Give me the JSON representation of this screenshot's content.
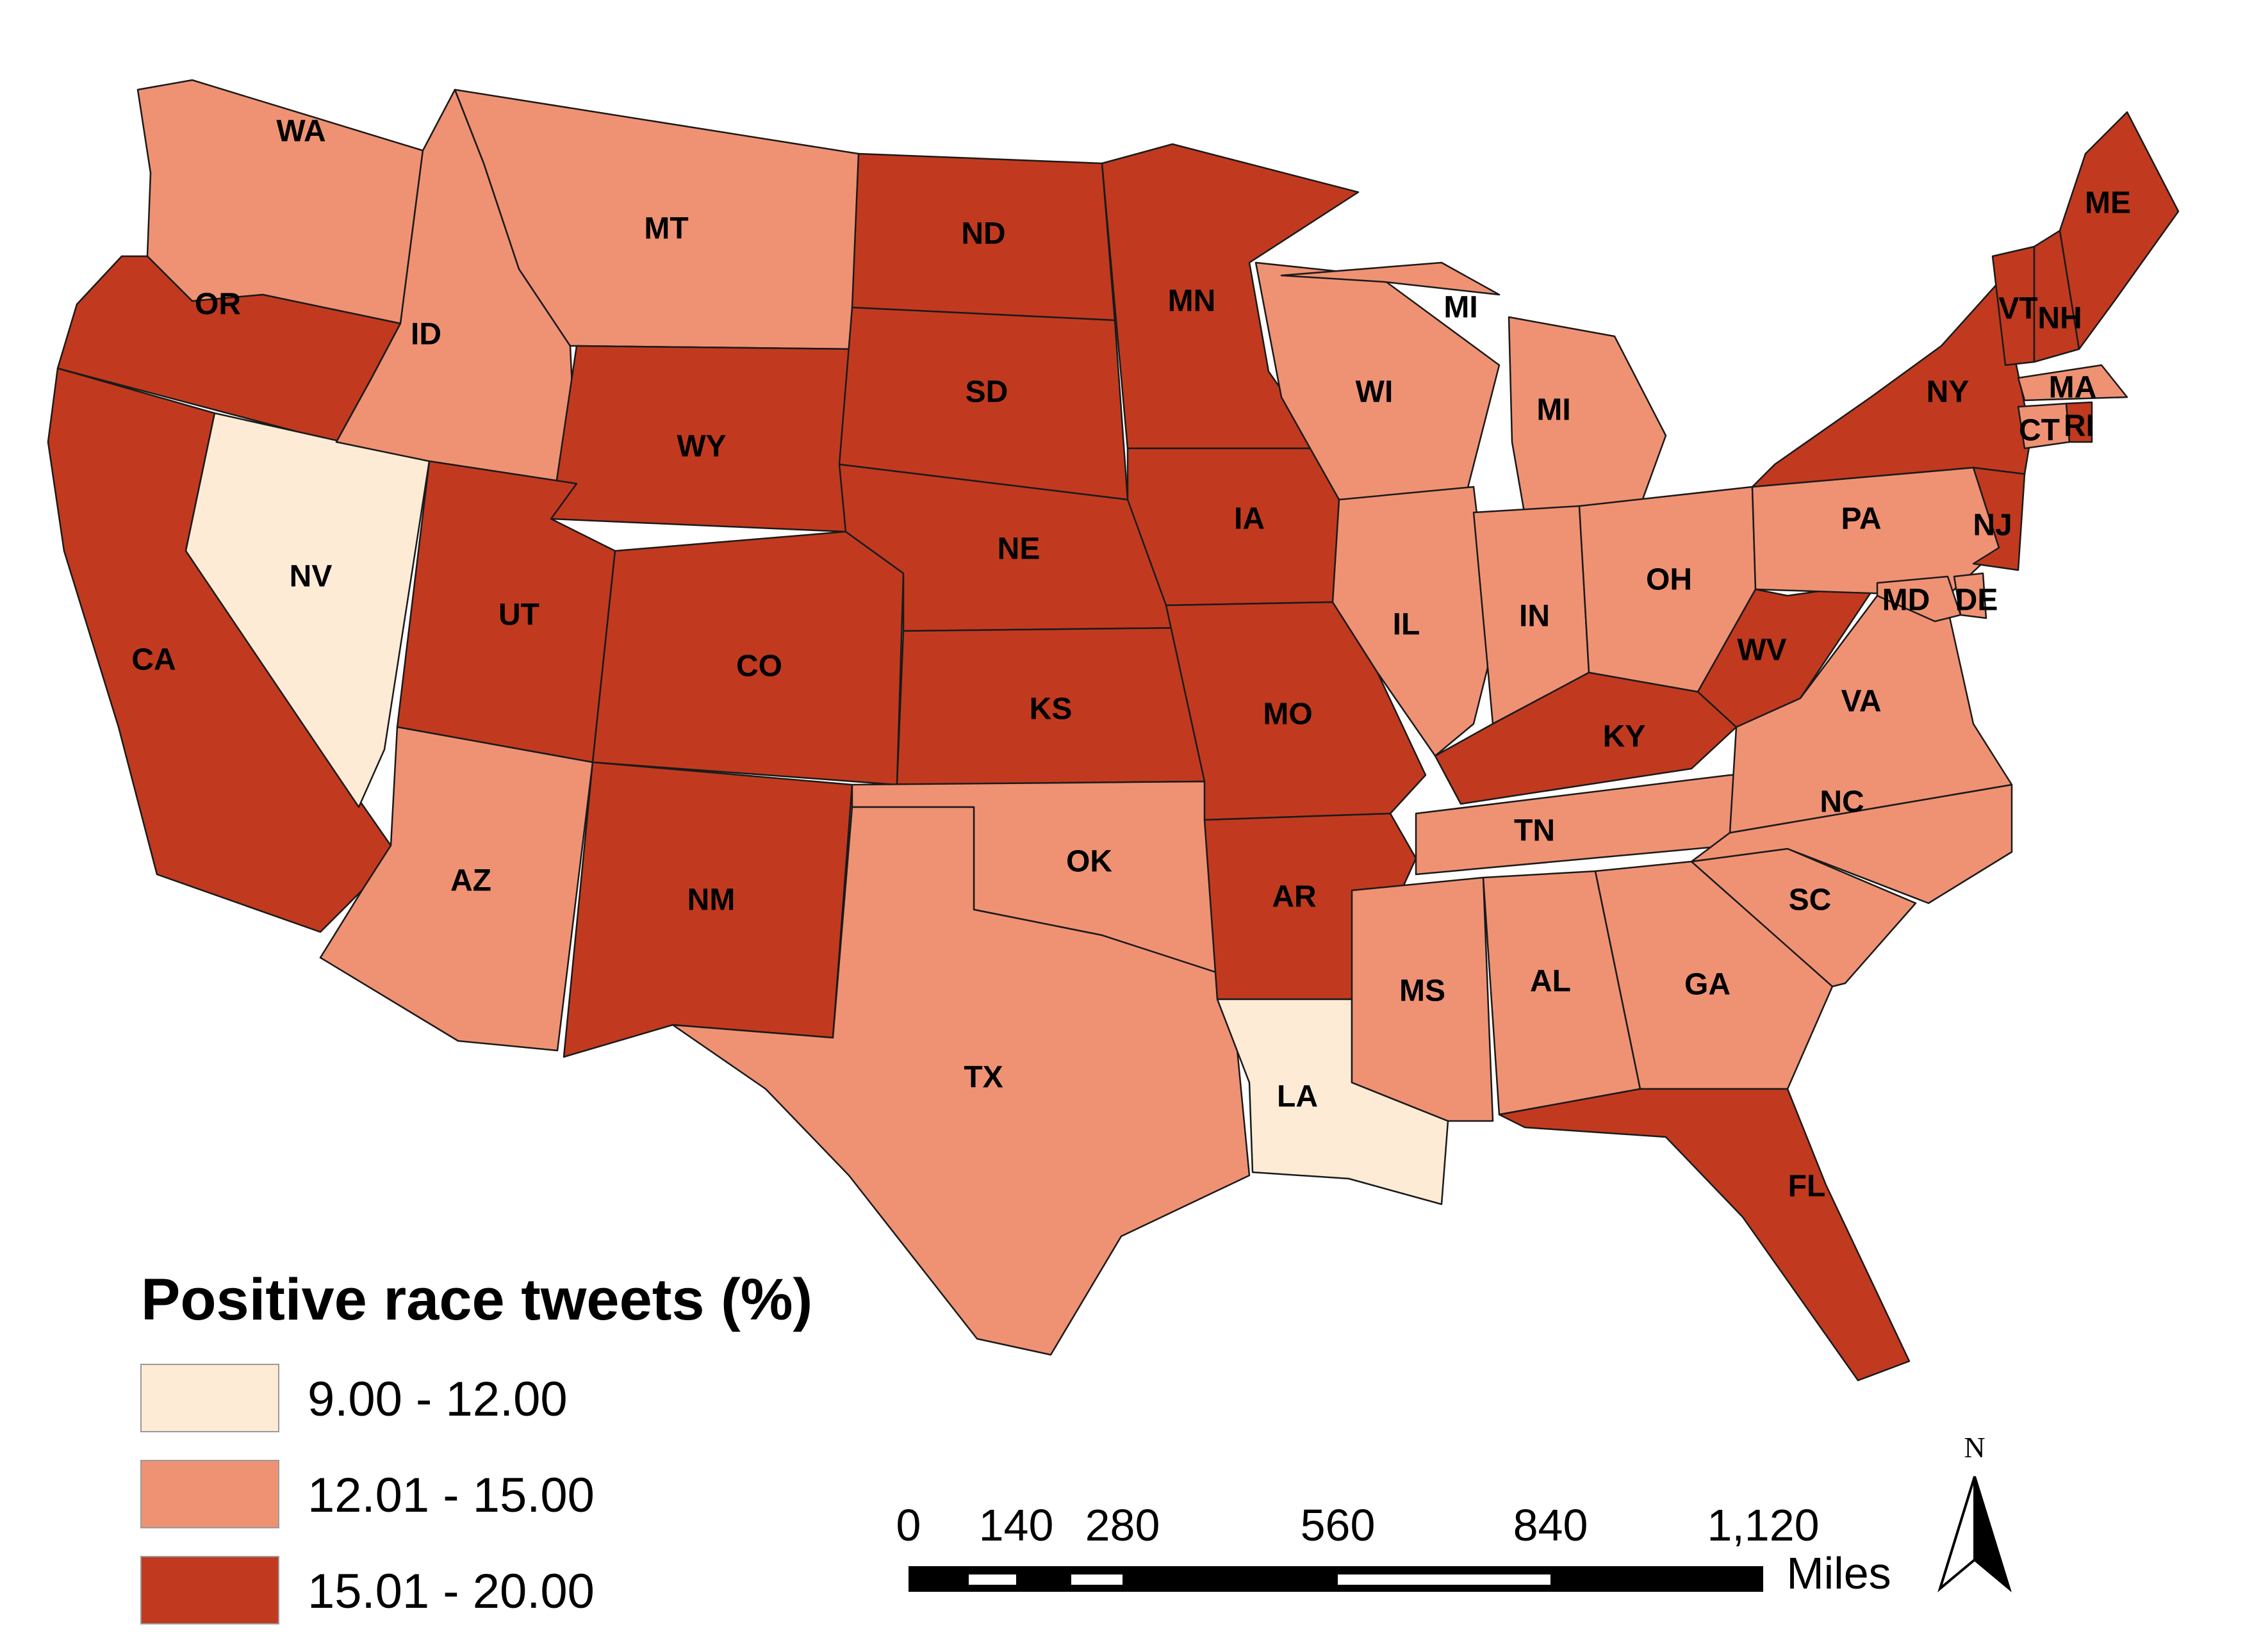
{
  "legend": {
    "title": "Positive race tweets (%)",
    "classes": [
      {
        "label": "9.00 - 12.00",
        "color": "#fdebd6"
      },
      {
        "label": "12.01 - 15.00",
        "color": "#ef9274"
      },
      {
        "label": "15.01 - 20.00",
        "color": "#c13a1f"
      }
    ]
  },
  "scale_bar": {
    "ticks": [
      "0",
      "140",
      "280",
      "560",
      "840",
      "1,120"
    ],
    "unit": "Miles"
  },
  "north_arrow": {
    "label": "N"
  },
  "states": [
    {
      "abbr": "WA",
      "class": 1
    },
    {
      "abbr": "OR",
      "class": 2
    },
    {
      "abbr": "CA",
      "class": 2
    },
    {
      "abbr": "NV",
      "class": 0
    },
    {
      "abbr": "ID",
      "class": 1
    },
    {
      "abbr": "MT",
      "class": 1
    },
    {
      "abbr": "WY",
      "class": 2
    },
    {
      "abbr": "UT",
      "class": 2
    },
    {
      "abbr": "AZ",
      "class": 1
    },
    {
      "abbr": "CO",
      "class": 2
    },
    {
      "abbr": "NM",
      "class": 2
    },
    {
      "abbr": "ND",
      "class": 2
    },
    {
      "abbr": "SD",
      "class": 2
    },
    {
      "abbr": "NE",
      "class": 2
    },
    {
      "abbr": "KS",
      "class": 2
    },
    {
      "abbr": "OK",
      "class": 1
    },
    {
      "abbr": "TX",
      "class": 1
    },
    {
      "abbr": "MN",
      "class": 2
    },
    {
      "abbr": "IA",
      "class": 2
    },
    {
      "abbr": "MO",
      "class": 2
    },
    {
      "abbr": "AR",
      "class": 2
    },
    {
      "abbr": "LA",
      "class": 0
    },
    {
      "abbr": "WI",
      "class": 1
    },
    {
      "abbr": "IL",
      "class": 1
    },
    {
      "abbr": "MI",
      "class": 1
    },
    {
      "abbr": "IN",
      "class": 1
    },
    {
      "abbr": "OH",
      "class": 1
    },
    {
      "abbr": "KY",
      "class": 2
    },
    {
      "abbr": "TN",
      "class": 1
    },
    {
      "abbr": "MS",
      "class": 1
    },
    {
      "abbr": "AL",
      "class": 1
    },
    {
      "abbr": "GA",
      "class": 1
    },
    {
      "abbr": "FL",
      "class": 2
    },
    {
      "abbr": "SC",
      "class": 1
    },
    {
      "abbr": "NC",
      "class": 1
    },
    {
      "abbr": "VA",
      "class": 1
    },
    {
      "abbr": "WV",
      "class": 2
    },
    {
      "abbr": "PA",
      "class": 1
    },
    {
      "abbr": "NY",
      "class": 2
    },
    {
      "abbr": "NJ",
      "class": 2
    },
    {
      "abbr": "MD",
      "class": 1
    },
    {
      "abbr": "DE",
      "class": 1
    },
    {
      "abbr": "VT",
      "class": 2
    },
    {
      "abbr": "NH",
      "class": 2
    },
    {
      "abbr": "ME",
      "class": 2
    },
    {
      "abbr": "MA",
      "class": 1
    },
    {
      "abbr": "CT",
      "class": 1
    },
    {
      "abbr": "RI",
      "class": 2
    }
  ]
}
